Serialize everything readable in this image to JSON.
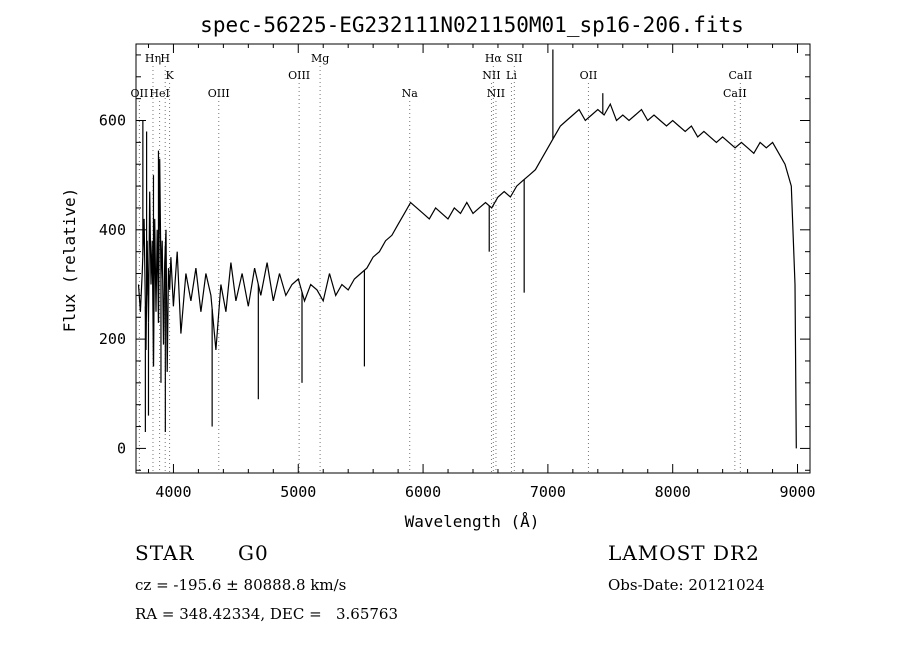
{
  "chart_data": {
    "type": "line",
    "title": "spec-56225-EG232111N021150M01_sp16-206.fits",
    "xlabel": "Wavelength (Å)",
    "ylabel": "Flux (relative)",
    "xlim": [
      3700,
      9100
    ],
    "ylim": [
      -45,
      740
    ],
    "x_ticks": [
      4000,
      5000,
      6000,
      7000,
      8000,
      9000
    ],
    "y_ticks": [
      0,
      200,
      400,
      600
    ],
    "grid": false,
    "series": [
      {
        "points": [
          [
            3720,
            300
          ],
          [
            3735,
            250
          ],
          [
            3750,
            320
          ],
          [
            3765,
            420
          ],
          [
            3780,
            180
          ],
          [
            3790,
            380
          ],
          [
            3800,
            230
          ],
          [
            3810,
            470
          ],
          [
            3820,
            300
          ],
          [
            3830,
            380
          ],
          [
            3840,
            150
          ],
          [
            3850,
            420
          ],
          [
            3860,
            250
          ],
          [
            3870,
            400
          ],
          [
            3880,
            230
          ],
          [
            3890,
            530
          ],
          [
            3900,
            310
          ],
          [
            3910,
            380
          ],
          [
            3920,
            190
          ],
          [
            3930,
            340
          ],
          [
            3940,
            400
          ],
          [
            3950,
            140
          ],
          [
            3960,
            330
          ],
          [
            3970,
            290
          ],
          [
            3980,
            350
          ],
          [
            4000,
            260
          ],
          [
            4030,
            360
          ],
          [
            4060,
            210
          ],
          [
            4100,
            320
          ],
          [
            4140,
            270
          ],
          [
            4180,
            330
          ],
          [
            4220,
            250
          ],
          [
            4260,
            320
          ],
          [
            4300,
            280
          ],
          [
            4340,
            180
          ],
          [
            4380,
            300
          ],
          [
            4420,
            250
          ],
          [
            4460,
            340
          ],
          [
            4500,
            270
          ],
          [
            4550,
            320
          ],
          [
            4600,
            260
          ],
          [
            4650,
            330
          ],
          [
            4700,
            280
          ],
          [
            4750,
            340
          ],
          [
            4800,
            270
          ],
          [
            4850,
            320
          ],
          [
            4900,
            280
          ],
          [
            4950,
            300
          ],
          [
            5000,
            310
          ],
          [
            5050,
            270
          ],
          [
            5100,
            300
          ],
          [
            5150,
            290
          ],
          [
            5200,
            270
          ],
          [
            5250,
            320
          ],
          [
            5300,
            280
          ],
          [
            5350,
            300
          ],
          [
            5400,
            290
          ],
          [
            5450,
            310
          ],
          [
            5500,
            320
          ],
          [
            5550,
            330
          ],
          [
            5600,
            350
          ],
          [
            5650,
            360
          ],
          [
            5700,
            380
          ],
          [
            5750,
            390
          ],
          [
            5800,
            410
          ],
          [
            5850,
            430
          ],
          [
            5900,
            450
          ],
          [
            5950,
            440
          ],
          [
            6000,
            430
          ],
          [
            6050,
            420
          ],
          [
            6100,
            440
          ],
          [
            6150,
            430
          ],
          [
            6200,
            420
          ],
          [
            6250,
            440
          ],
          [
            6300,
            430
          ],
          [
            6350,
            450
          ],
          [
            6400,
            430
          ],
          [
            6450,
            440
          ],
          [
            6500,
            450
          ],
          [
            6550,
            440
          ],
          [
            6600,
            460
          ],
          [
            6650,
            470
          ],
          [
            6700,
            460
          ],
          [
            6750,
            480
          ],
          [
            6800,
            490
          ],
          [
            6850,
            500
          ],
          [
            6900,
            510
          ],
          [
            6950,
            530
          ],
          [
            7000,
            550
          ],
          [
            7050,
            570
          ],
          [
            7100,
            590
          ],
          [
            7150,
            600
          ],
          [
            7200,
            610
          ],
          [
            7250,
            620
          ],
          [
            7300,
            600
          ],
          [
            7350,
            610
          ],
          [
            7400,
            620
          ],
          [
            7450,
            610
          ],
          [
            7500,
            630
          ],
          [
            7550,
            600
          ],
          [
            7600,
            610
          ],
          [
            7650,
            600
          ],
          [
            7700,
            610
          ],
          [
            7750,
            620
          ],
          [
            7800,
            600
          ],
          [
            7850,
            610
          ],
          [
            7900,
            600
          ],
          [
            7950,
            590
          ],
          [
            8000,
            600
          ],
          [
            8050,
            590
          ],
          [
            8100,
            580
          ],
          [
            8150,
            590
          ],
          [
            8200,
            570
          ],
          [
            8250,
            580
          ],
          [
            8300,
            570
          ],
          [
            8350,
            560
          ],
          [
            8400,
            570
          ],
          [
            8450,
            560
          ],
          [
            8500,
            550
          ],
          [
            8550,
            560
          ],
          [
            8600,
            550
          ],
          [
            8650,
            540
          ],
          [
            8700,
            560
          ],
          [
            8750,
            550
          ],
          [
            8800,
            560
          ],
          [
            8850,
            540
          ],
          [
            8900,
            520
          ],
          [
            8950,
            480
          ],
          [
            8980,
            300
          ],
          [
            8990,
            0
          ]
        ],
        "spikes": [
          [
            3755,
            600
          ],
          [
            3775,
            30
          ],
          [
            3785,
            580
          ],
          [
            3800,
            60
          ],
          [
            3820,
            300
          ],
          [
            3840,
            500
          ],
          [
            3880,
            545
          ],
          [
            3900,
            120
          ],
          [
            3935,
            30
          ],
          [
            4310,
            40
          ],
          [
            4680,
            90
          ],
          [
            5030,
            120
          ],
          [
            5530,
            150
          ],
          [
            6530,
            360
          ],
          [
            6810,
            285
          ],
          [
            7040,
            730
          ],
          [
            7440,
            650
          ]
        ]
      }
    ],
    "line_markers": [
      {
        "label": "OII",
        "x": 3727,
        "row": 3
      },
      {
        "label": "Hη",
        "x": 3836,
        "row": 1
      },
      {
        "label": "H",
        "x": 3934,
        "row": 1
      },
      {
        "label": "K",
        "x": 3969,
        "row": 2
      },
      {
        "label": "HeI",
        "x": 3889,
        "row": 3
      },
      {
        "label": "OIII",
        "x": 4363,
        "row": 3
      },
      {
        "label": "OIII",
        "x": 5007,
        "row": 2
      },
      {
        "label": "Mg",
        "x": 5175,
        "row": 1
      },
      {
        "label": "Na",
        "x": 5893,
        "row": 3
      },
      {
        "label": "Hα",
        "x": 6563,
        "row": 1
      },
      {
        "label": "NII",
        "x": 6548,
        "row": 2
      },
      {
        "label": "Li",
        "x": 6708,
        "row": 2
      },
      {
        "label": "NII",
        "x": 6584,
        "row": 3
      },
      {
        "label": "OII",
        "x": 7325,
        "row": 2
      },
      {
        "label": "SII",
        "x": 6731,
        "row": 1
      },
      {
        "label": "CaII",
        "x": 8542,
        "row": 2
      },
      {
        "label": "CaII",
        "x": 8498,
        "row": 3
      }
    ]
  },
  "info": {
    "class": "STAR",
    "subclass": "G0",
    "survey": "LAMOST DR2",
    "cz": "cz = -195.6 ± 80888.8 km/s",
    "obs_date": "Obs-Date: 20121024",
    "coords": "RA = 348.42334, DEC =   3.65763"
  }
}
